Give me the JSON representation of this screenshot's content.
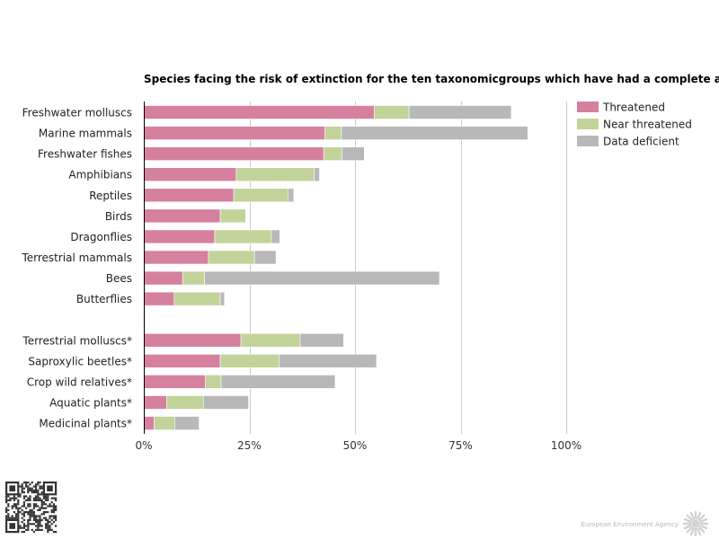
{
  "colors": {
    "threatened": "#d6809f",
    "near_threatened": "#c2d39a",
    "data_deficient": "#b8b8b8",
    "grid": "#cccccc",
    "axis": "#000000"
  },
  "footer": {
    "agency_name": "European Environment Agency",
    "logo_icon": "eea-sun-logo-icon",
    "qr_icon": "qr-code-icon"
  },
  "chart_data": {
    "type": "bar",
    "orientation": "horizontal",
    "stacked": true,
    "title": "Species facing the risk of extinction for the ten taxonomicgroups which have had a complete assessment",
    "categories": [
      "Freshwater molluscs",
      "Marine mammals",
      "Freshwater fishes",
      "Amphibians",
      "Reptiles",
      "Birds",
      "Dragonflies",
      "Terrestrial mammals",
      "Bees",
      "Butterflies",
      "",
      "Terrestrial molluscs*",
      "Saproxylic beetles*",
      "Crop wild relatives*",
      "Aquatic plants*",
      "Medicinal plants*"
    ],
    "series": [
      {
        "name": "Threatened",
        "color": "#d6809f",
        "values": [
          54.6,
          42.9,
          42.6,
          21.9,
          21.3,
          18.1,
          16.8,
          15.3,
          9.2,
          7.2,
          null,
          23.0,
          18.1,
          14.6,
          5.4,
          2.4
        ]
      },
      {
        "name": "Near threatened",
        "color": "#c2d39a",
        "values": [
          8.2,
          3.9,
          4.3,
          18.4,
          12.8,
          6.0,
          13.4,
          10.9,
          5.2,
          10.9,
          null,
          14.0,
          14.0,
          3.7,
          8.7,
          4.9
        ]
      },
      {
        "name": "Data deficient",
        "color": "#b8b8b8",
        "values": [
          24.2,
          44.1,
          5.3,
          1.3,
          1.4,
          0,
          2.0,
          5.1,
          55.6,
          1.0,
          null,
          10.3,
          23.0,
          27.0,
          10.7,
          5.8
        ]
      }
    ],
    "xaxis": {
      "ticks": [
        0,
        25,
        50,
        75,
        100
      ],
      "tick_labels": [
        "0%",
        "25%",
        "50%",
        "75%",
        "100%"
      ],
      "range": [
        0,
        100
      ]
    },
    "grid": true,
    "legend_position": "top-right"
  }
}
